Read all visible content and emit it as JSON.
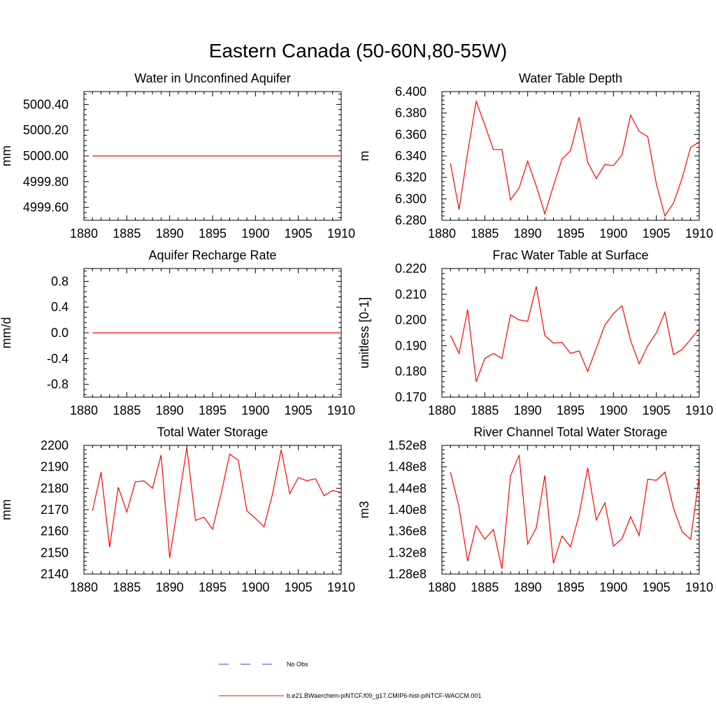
{
  "figure_title": "Eastern Canada (50-60N,80-55W)",
  "colors": {
    "model": "#ff0000",
    "obs": "#3b3bd6",
    "axis": "#000000"
  },
  "legend": {
    "entries": [
      {
        "label": "No Obs",
        "style": "dashed",
        "color": "#3b3bd6"
      },
      {
        "label": "b.e21.BWaerchem-piNTCF.f09_g17.CMIP6-hist-piNTCF-WACCM.001",
        "style": "solid",
        "color": "#ff0000"
      }
    ]
  },
  "chart_data": [
    {
      "type": "line",
      "title": "Water in Unconfined Aquifer",
      "ylabel": "mm",
      "xlim": [
        1880,
        1910
      ],
      "ylim": [
        4999.5,
        5000.5
      ],
      "xticks": [
        1880,
        1885,
        1890,
        1895,
        1900,
        1905,
        1910
      ],
      "xtick_labels": [
        "1880",
        "1885",
        "1890",
        "1895",
        "1900",
        "1905",
        "1910"
      ],
      "yticks": [
        4999.6,
        4999.8,
        5000.0,
        5000.2,
        5000.4
      ],
      "ytick_labels": [
        "4999.60",
        "4999.80",
        "5000.00",
        "5000.20",
        "5000.40"
      ],
      "x": [
        1881,
        1882,
        1883,
        1884,
        1885,
        1886,
        1887,
        1888,
        1889,
        1890,
        1891,
        1892,
        1893,
        1894,
        1895,
        1896,
        1897,
        1898,
        1899,
        1900,
        1901,
        1902,
        1903,
        1904,
        1905,
        1906,
        1907,
        1908,
        1909,
        1910
      ],
      "series": [
        {
          "values": [
            5000,
            5000,
            5000,
            5000,
            5000,
            5000,
            5000,
            5000,
            5000,
            5000,
            5000,
            5000,
            5000,
            5000,
            5000,
            5000,
            5000,
            5000,
            5000,
            5000,
            5000,
            5000,
            5000,
            5000,
            5000,
            5000,
            5000,
            5000,
            5000,
            5000
          ]
        }
      ]
    },
    {
      "type": "line",
      "title": "Water Table Depth",
      "ylabel": "m",
      "xlim": [
        1880,
        1910
      ],
      "ylim": [
        6.28,
        6.4
      ],
      "xticks": [
        1880,
        1885,
        1890,
        1895,
        1900,
        1905,
        1910
      ],
      "xtick_labels": [
        "1880",
        "1885",
        "1890",
        "1895",
        "1900",
        "1905",
        "1910"
      ],
      "yticks": [
        6.28,
        6.3,
        6.32,
        6.34,
        6.36,
        6.38,
        6.4
      ],
      "ytick_labels": [
        "6.280",
        "6.300",
        "6.320",
        "6.340",
        "6.360",
        "6.380",
        "6.400"
      ],
      "x": [
        1881,
        1882,
        1883,
        1884,
        1885,
        1886,
        1887,
        1888,
        1889,
        1890,
        1891,
        1892,
        1893,
        1894,
        1895,
        1896,
        1897,
        1898,
        1899,
        1900,
        1901,
        1902,
        1903,
        1904,
        1905,
        1906,
        1907,
        1908,
        1909,
        1910
      ],
      "series": [
        {
          "values": [
            6.333,
            6.29,
            6.343,
            6.391,
            6.369,
            6.346,
            6.346,
            6.299,
            6.31,
            6.335,
            6.312,
            6.286,
            6.312,
            6.337,
            6.345,
            6.376,
            6.334,
            6.319,
            6.332,
            6.331,
            6.341,
            6.378,
            6.363,
            6.358,
            6.314,
            6.284,
            6.296,
            6.319,
            6.348,
            6.353
          ]
        }
      ]
    },
    {
      "type": "line",
      "title": "Aquifer Recharge Rate",
      "ylabel": "mm/d",
      "xlim": [
        1880,
        1910
      ],
      "ylim": [
        -1.0,
        1.0
      ],
      "xticks": [
        1880,
        1885,
        1890,
        1895,
        1900,
        1905,
        1910
      ],
      "xtick_labels": [
        "1880",
        "1885",
        "1890",
        "1895",
        "1900",
        "1905",
        "1910"
      ],
      "yticks": [
        -0.8,
        -0.4,
        0.0,
        0.4,
        0.8
      ],
      "ytick_labels": [
        "-0.8",
        "-0.4",
        "0.0",
        "0.4",
        "0.8"
      ],
      "x": [
        1881,
        1882,
        1883,
        1884,
        1885,
        1886,
        1887,
        1888,
        1889,
        1890,
        1891,
        1892,
        1893,
        1894,
        1895,
        1896,
        1897,
        1898,
        1899,
        1900,
        1901,
        1902,
        1903,
        1904,
        1905,
        1906,
        1907,
        1908,
        1909,
        1910
      ],
      "series": [
        {
          "values": [
            0,
            0,
            0,
            0,
            0,
            0,
            0,
            0,
            0,
            0,
            0,
            0,
            0,
            0,
            0,
            0,
            0,
            0,
            0,
            0,
            0,
            0,
            0,
            0,
            0,
            0,
            0,
            0,
            0,
            0
          ]
        }
      ]
    },
    {
      "type": "line",
      "title": "Frac Water Table at Surface",
      "ylabel": "unitless [0-1]",
      "xlim": [
        1880,
        1910
      ],
      "ylim": [
        0.17,
        0.22
      ],
      "xticks": [
        1880,
        1885,
        1890,
        1895,
        1900,
        1905,
        1910
      ],
      "xtick_labels": [
        "1880",
        "1885",
        "1890",
        "1895",
        "1900",
        "1905",
        "1910"
      ],
      "yticks": [
        0.17,
        0.18,
        0.19,
        0.2,
        0.21,
        0.22
      ],
      "ytick_labels": [
        "0.170",
        "0.180",
        "0.190",
        "0.200",
        "0.210",
        "0.220"
      ],
      "x": [
        1881,
        1882,
        1883,
        1884,
        1885,
        1886,
        1887,
        1888,
        1889,
        1890,
        1891,
        1892,
        1893,
        1894,
        1895,
        1896,
        1897,
        1898,
        1899,
        1900,
        1901,
        1902,
        1903,
        1904,
        1905,
        1906,
        1907,
        1908,
        1909,
        1910
      ],
      "series": [
        {
          "values": [
            0.194,
            0.187,
            0.204,
            0.176,
            0.185,
            0.187,
            0.185,
            0.202,
            0.2,
            0.1995,
            0.213,
            0.194,
            0.191,
            0.1913,
            0.187,
            0.188,
            0.18,
            0.189,
            0.198,
            0.2025,
            0.2055,
            0.192,
            0.183,
            0.19,
            0.195,
            0.203,
            0.1865,
            0.1885,
            0.1925,
            0.1965
          ]
        }
      ]
    },
    {
      "type": "line",
      "title": "Total Water Storage",
      "ylabel": "mm",
      "xlim": [
        1880,
        1910
      ],
      "ylim": [
        2140,
        2200
      ],
      "xticks": [
        1880,
        1885,
        1890,
        1895,
        1900,
        1905,
        1910
      ],
      "xtick_labels": [
        "1880",
        "1885",
        "1890",
        "1895",
        "1900",
        "1905",
        "1910"
      ],
      "yticks": [
        2140,
        2150,
        2160,
        2170,
        2180,
        2190,
        2200
      ],
      "ytick_labels": [
        "2140",
        "2150",
        "2160",
        "2170",
        "2180",
        "2190",
        "2200"
      ],
      "x": [
        1881,
        1882,
        1883,
        1884,
        1885,
        1886,
        1887,
        1888,
        1889,
        1890,
        1891,
        1892,
        1893,
        1894,
        1895,
        1896,
        1897,
        1898,
        1899,
        1900,
        1901,
        1902,
        1903,
        1904,
        1905,
        1906,
        1907,
        1908,
        1909,
        1910
      ],
      "series": [
        {
          "values": [
            2169.5,
            2187.5,
            2152.5,
            2180.5,
            2169,
            2183,
            2183.5,
            2180,
            2195.5,
            2147.5,
            2173,
            2199,
            2165,
            2166.5,
            2161,
            2177.5,
            2196,
            2193,
            2169.5,
            2166,
            2162,
            2177.5,
            2198,
            2177.5,
            2185,
            2183.5,
            2184.5,
            2176.5,
            2179,
            2178
          ]
        }
      ]
    },
    {
      "type": "line",
      "title": "River Channel Total Water Storage",
      "ylabel": "m3",
      "xlim": [
        1880,
        1910
      ],
      "ylim": [
        128000000,
        152000000
      ],
      "xticks": [
        1880,
        1885,
        1890,
        1895,
        1900,
        1905,
        1910
      ],
      "xtick_labels": [
        "1880",
        "1885",
        "1890",
        "1895",
        "1900",
        "1905",
        "1910"
      ],
      "yticks": [
        128000000,
        132000000,
        136000000,
        140000000,
        144000000,
        148000000,
        152000000
      ],
      "ytick_labels": [
        "1.28e8",
        "1.32e8",
        "1.36e8",
        "1.40e8",
        "1.44e8",
        "1.48e8",
        "1.52e8"
      ],
      "x": [
        1881,
        1882,
        1883,
        1884,
        1885,
        1886,
        1887,
        1888,
        1889,
        1890,
        1891,
        1892,
        1893,
        1894,
        1895,
        1896,
        1897,
        1898,
        1899,
        1900,
        1901,
        1902,
        1903,
        1904,
        1905,
        1906,
        1907,
        1908,
        1909,
        1910
      ],
      "series": [
        {
          "values": [
            147000000,
            140500000,
            130400000,
            137000000,
            134500000,
            136300000,
            129000000,
            146300000,
            150200000,
            133600000,
            136600000,
            146400000,
            130000000,
            135100000,
            133100000,
            139100000,
            147800000,
            138100000,
            141300000,
            133200000,
            134600000,
            138700000,
            135200000,
            145700000,
            145500000,
            147000000,
            140300000,
            135900000,
            134500000,
            146200000
          ]
        }
      ]
    }
  ]
}
